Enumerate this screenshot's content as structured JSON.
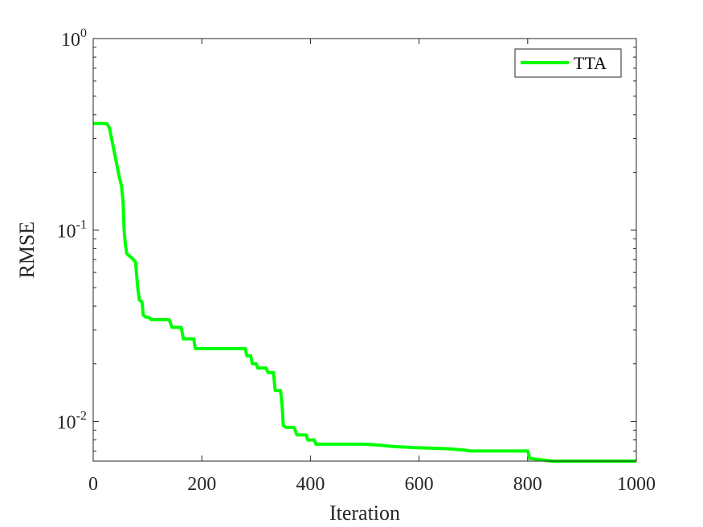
{
  "chart_data": {
    "type": "line",
    "title": "",
    "xlabel": "Iteration",
    "ylabel": "RMSE",
    "xlim": [
      0,
      1000
    ],
    "ylim": [
      0.0062,
      1
    ],
    "yscale": "log",
    "grid": false,
    "legend_position": "top-right",
    "x_ticks": [
      "0",
      "200",
      "400",
      "600",
      "800",
      "1000"
    ],
    "y_ticks": [
      {
        "value": 1,
        "base": "10",
        "exp": "0"
      },
      {
        "value": 0.1,
        "base": "10",
        "exp": "-1"
      },
      {
        "value": 0.01,
        "base": "10",
        "exp": "-2"
      }
    ],
    "series": [
      {
        "name": "TTA",
        "color": "#00ff00",
        "x": [
          0,
          25,
          30,
          48,
          52,
          55,
          57,
          59,
          62,
          67,
          72,
          78,
          80,
          82,
          85,
          90,
          92,
          97,
          102,
          107,
          140,
          145,
          162,
          166,
          185,
          188,
          280,
          283,
          290,
          293,
          300,
          303,
          318,
          322,
          332,
          335,
          345,
          348,
          350,
          355,
          370,
          375,
          392,
          395,
          407,
          410,
          500,
          530,
          550,
          590,
          650,
          680,
          695,
          800,
          804,
          825,
          845,
          1000
        ],
        "y": [
          0.36,
          0.36,
          0.34,
          0.19,
          0.17,
          0.14,
          0.1,
          0.085,
          0.075,
          0.073,
          0.071,
          0.068,
          0.058,
          0.05,
          0.043,
          0.042,
          0.036,
          0.035,
          0.035,
          0.034,
          0.034,
          0.031,
          0.031,
          0.027,
          0.027,
          0.024,
          0.024,
          0.022,
          0.022,
          0.02,
          0.02,
          0.019,
          0.019,
          0.018,
          0.018,
          0.0145,
          0.0145,
          0.012,
          0.0095,
          0.0093,
          0.0093,
          0.0085,
          0.0085,
          0.008,
          0.008,
          0.0076,
          0.0076,
          0.0075,
          0.0074,
          0.0073,
          0.0072,
          0.0071,
          0.007,
          0.007,
          0.0064,
          0.0063,
          0.0062,
          0.0062
        ]
      }
    ]
  }
}
